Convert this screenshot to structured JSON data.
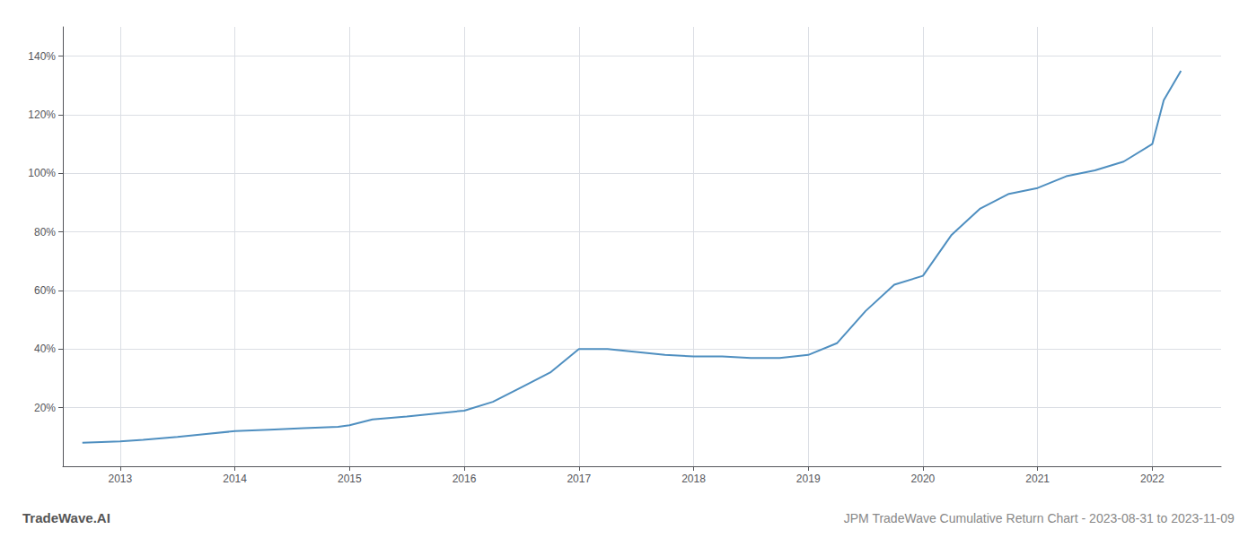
{
  "chart_data": {
    "type": "line",
    "title": "JPM TradeWave Cumulative Return Chart - 2023-08-31 to 2023-11-09",
    "annotations": [
      "TradeWave.AI"
    ],
    "color": "#4f8fc0",
    "x": [
      2012.67,
      2013.0,
      2013.2,
      2013.5,
      2013.75,
      2014.0,
      2014.3,
      2014.6,
      2014.9,
      2015.0,
      2015.2,
      2015.5,
      2015.75,
      2016.0,
      2016.25,
      2016.5,
      2016.75,
      2017.0,
      2017.25,
      2017.5,
      2017.75,
      2018.0,
      2018.25,
      2018.5,
      2018.75,
      2019.0,
      2019.25,
      2019.5,
      2019.75,
      2020.0,
      2020.25,
      2020.5,
      2020.75,
      2021.0,
      2021.25,
      2021.5,
      2021.75,
      2022.0,
      2022.1,
      2022.25
    ],
    "values": [
      8,
      8.5,
      9,
      10,
      11,
      12,
      12.5,
      13,
      13.5,
      14,
      16,
      17,
      18,
      19,
      22,
      27,
      32,
      40,
      40,
      39,
      38,
      37.5,
      37.5,
      37,
      37,
      38,
      42,
      53,
      62,
      65,
      79,
      88,
      93,
      95,
      99,
      101,
      104,
      110,
      125,
      135
    ],
    "xlim": [
      2012.5,
      2022.6
    ],
    "xticks": [
      2013,
      2014,
      2015,
      2016,
      2017,
      2018,
      2019,
      2020,
      2021,
      2022
    ],
    "ylim": [
      0,
      150
    ],
    "yticks": [
      {
        "value": 20,
        "label": "20%"
      },
      {
        "value": 40,
        "label": "40%"
      },
      {
        "value": 60,
        "label": "60%"
      },
      {
        "value": 80,
        "label": "80%"
      },
      {
        "value": 100,
        "label": "100%"
      },
      {
        "value": 120,
        "label": "120%"
      },
      {
        "value": 140,
        "label": "140%"
      }
    ],
    "grid": true
  }
}
